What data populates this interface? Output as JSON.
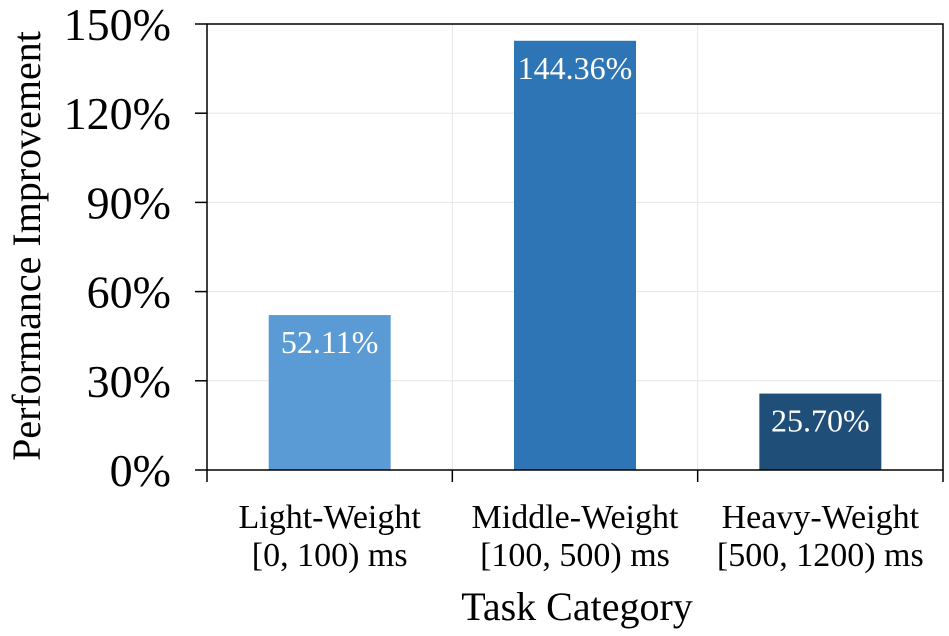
{
  "chart_data": {
    "type": "bar",
    "title": "",
    "xlabel": "Task Category",
    "ylabel": "Performance Improvement",
    "categories": [
      [
        "Light-Weight",
        "[0, 100) ms"
      ],
      [
        "Middle-Weight",
        "[100, 500) ms"
      ],
      [
        "Heavy-Weight",
        "[500, 1200) ms"
      ]
    ],
    "values": [
      52.11,
      144.36,
      25.7
    ],
    "value_labels": [
      "52.11%",
      "144.36%",
      "25.70%"
    ],
    "bar_colors": [
      "#5b9bd5",
      "#2e75b6",
      "#1f4e79"
    ],
    "ylim": [
      0,
      150
    ],
    "yticks": [
      0,
      30,
      60,
      90,
      120,
      150
    ],
    "ytick_labels": [
      "0%",
      "30%",
      "60%",
      "90%",
      "120%",
      "150%"
    ],
    "grid": true
  }
}
